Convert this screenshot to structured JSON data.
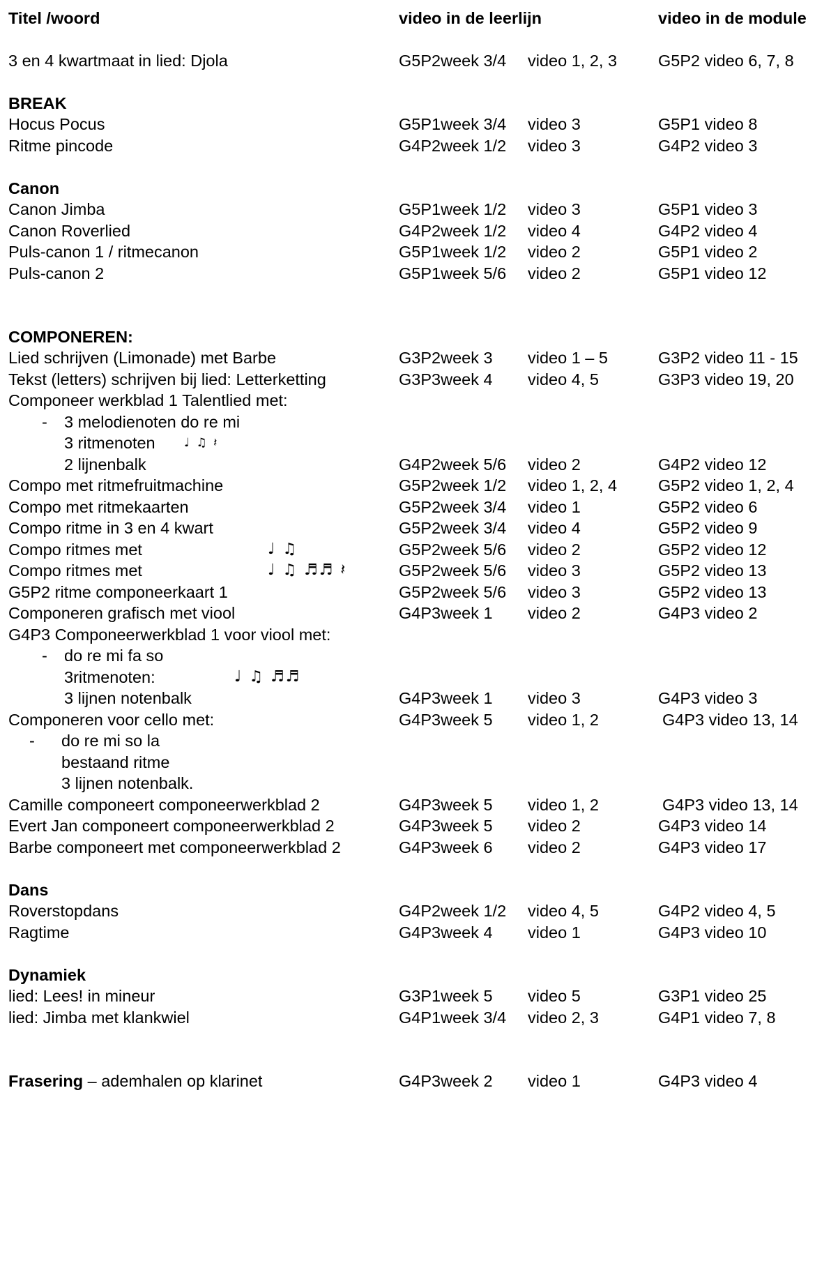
{
  "header": {
    "col1": "Titel /woord",
    "col2": "video in de leerlijn",
    "col3": "video in de module"
  },
  "rows": {
    "djola": {
      "title": "3 en 4 kwartmaat in lied: Djola",
      "week": "G5P2week 3/4",
      "video": "video 1, 2, 3",
      "module": "G5P2 video 6, 7, 8"
    },
    "break": {
      "title": "BREAK"
    },
    "hocus": {
      "title": "Hocus Pocus",
      "week": "G5P1week 3/4",
      "video": "video 3",
      "module": "G5P1 video 8"
    },
    "pincode": {
      "title": "Ritme pincode",
      "week": "G4P2week 1/2",
      "video": "video 3",
      "module": "G4P2 video 3"
    },
    "canon": {
      "title": "Canon"
    },
    "canon_jimba": {
      "title": "Canon Jimba",
      "week": "G5P1week 1/2",
      "video": "video 3",
      "module": "G5P1 video 3"
    },
    "canon_rover": {
      "title": "Canon Roverlied",
      "week": "G4P2week 1/2",
      "video": "video 4",
      "module": "G4P2 video 4"
    },
    "puls1": {
      "title": "Puls-canon 1 / ritmecanon",
      "week": "G5P1week 1/2",
      "video": "video 2",
      "module": "G5P1 video 2"
    },
    "puls2": {
      "title": "Puls-canon 2",
      "week": "G5P1week 5/6",
      "video": "video 2",
      "module": "G5P1 video 12"
    },
    "componeren": {
      "title": "COMPONEREN:"
    },
    "limonade": {
      "title": "Lied schrijven (Limonade) met Barbe",
      "week": "G3P2week 3",
      "video": "video 1 – 5",
      "module": "G3P2 video 11 - 15"
    },
    "letterketting": {
      "title": "Tekst (letters) schrijven bij lied: Letterketting",
      "week": "G3P3week 4",
      "video": "video 4, 5",
      "module": "G3P3 video 19, 20"
    },
    "werkblad1": {
      "title": "Componeer werkblad 1 Talentlied met:"
    },
    "werkblad1_a": {
      "dash": "-",
      "title": "3 melodienoten do re mi"
    },
    "werkblad1_b": {
      "title": "3 ritmenoten",
      "notes": "♩ ♫ 𝄽"
    },
    "werkblad1_c": {
      "title": "2 lijnenbalk",
      "week": "G4P2week 5/6",
      "video": "video 2",
      "module": "G4P2 video 12"
    },
    "fruitmachine": {
      "title": "Compo met ritmefruitmachine",
      "week": "G5P2week 1/2",
      "video": "video 1, 2, 4",
      "module": "G5P2 video 1, 2, 4"
    },
    "ritmekaarten": {
      "title": "Compo met ritmekaarten",
      "week": "G5P2week 3/4",
      "video": "video 1",
      "module": "G5P2 video 6"
    },
    "kwart": {
      "title": "Compo ritme in 3 en 4 kwart",
      "week": "G5P2week 3/4",
      "video": "video 4",
      "module": "G5P2 video 9"
    },
    "ritmes1": {
      "title": "Compo ritmes met",
      "notes": "♩ ♫",
      "week": "G5P2week 5/6",
      "video": "video 2",
      "module": "G5P2 video 12"
    },
    "ritmes2": {
      "title": "Compo ritmes met",
      "notes": "♩ ♫ ♬♬ 𝄽",
      "week": "G5P2week 5/6",
      "video": "video 3",
      "module": "G5P2 video 13"
    },
    "componeerkaart": {
      "title": "G5P2 ritme componeerkaart 1",
      "week": "G5P2week 5/6",
      "video": "video 3",
      "module": "G5P2 video 13"
    },
    "grafisch": {
      "title": "Componeren grafisch met viool",
      "week": "G4P3week 1",
      "video": "video 2",
      "module": "G4P3 video 2"
    },
    "viool": {
      "title": "G4P3 Componeerwerkblad 1 voor viool met:"
    },
    "viool_a": {
      "dash": "-",
      "title": "do re mi fa so"
    },
    "viool_b": {
      "title": "3ritmenoten:",
      "notes": "♩ ♫ ♬♬"
    },
    "viool_c": {
      "title": "3 lijnen notenbalk",
      "week": "G4P3week 1",
      "video": "video 3",
      "module": "G4P3 video 3"
    },
    "cello": {
      "title": "Componeren voor cello met:",
      "week": "G4P3week 5",
      "video": "video 1, 2",
      "module": "G4P3 video 13, 14"
    },
    "cello_a": {
      "dash": "-",
      "title": "do re mi so la"
    },
    "cello_b": {
      "title": "bestaand ritme"
    },
    "cello_c": {
      "title": "3 lijnen notenbalk."
    },
    "camille": {
      "title": "Camille componeert componeerwerkblad 2",
      "week": "G4P3week 5",
      "video": "video 1, 2",
      "module": "G4P3 video 13, 14"
    },
    "evert": {
      "title": "Evert Jan componeert componeerwerkblad 2",
      "week": "G4P3week 5",
      "video": "video 2",
      "module": "G4P3 video 14"
    },
    "barbe": {
      "title": "Barbe componeert met componeerwerkblad 2",
      "week": "G4P3week 6",
      "video": "video 2",
      "module": "G4P3 video 17"
    },
    "dans": {
      "title": "Dans"
    },
    "roverstop": {
      "title": "Roverstopdans",
      "week": "G4P2week 1/2",
      "video": "video 4, 5",
      "module": "G4P2 video 4, 5"
    },
    "ragtime": {
      "title": "Ragtime",
      "week": "G4P3week 4",
      "video": "video 1",
      "module": "G4P3 video 10"
    },
    "dynamiek": {
      "title": "Dynamiek"
    },
    "lees": {
      "title": "lied: Lees! in mineur",
      "week": "G3P1week 5",
      "video": "video 5",
      "module": "G3P1 video 25"
    },
    "jimba_klank": {
      "title": "lied: Jimba met klankwiel",
      "week": "G4P1week 3/4",
      "video": "video 2, 3",
      "module": "G4P1 video 7, 8"
    },
    "frasering": {
      "title": "Frasering",
      "suffix": " – ademhalen op klarinet",
      "week": "G4P3week 2",
      "video": "video 1",
      "module": "G4P3 video 4"
    }
  }
}
